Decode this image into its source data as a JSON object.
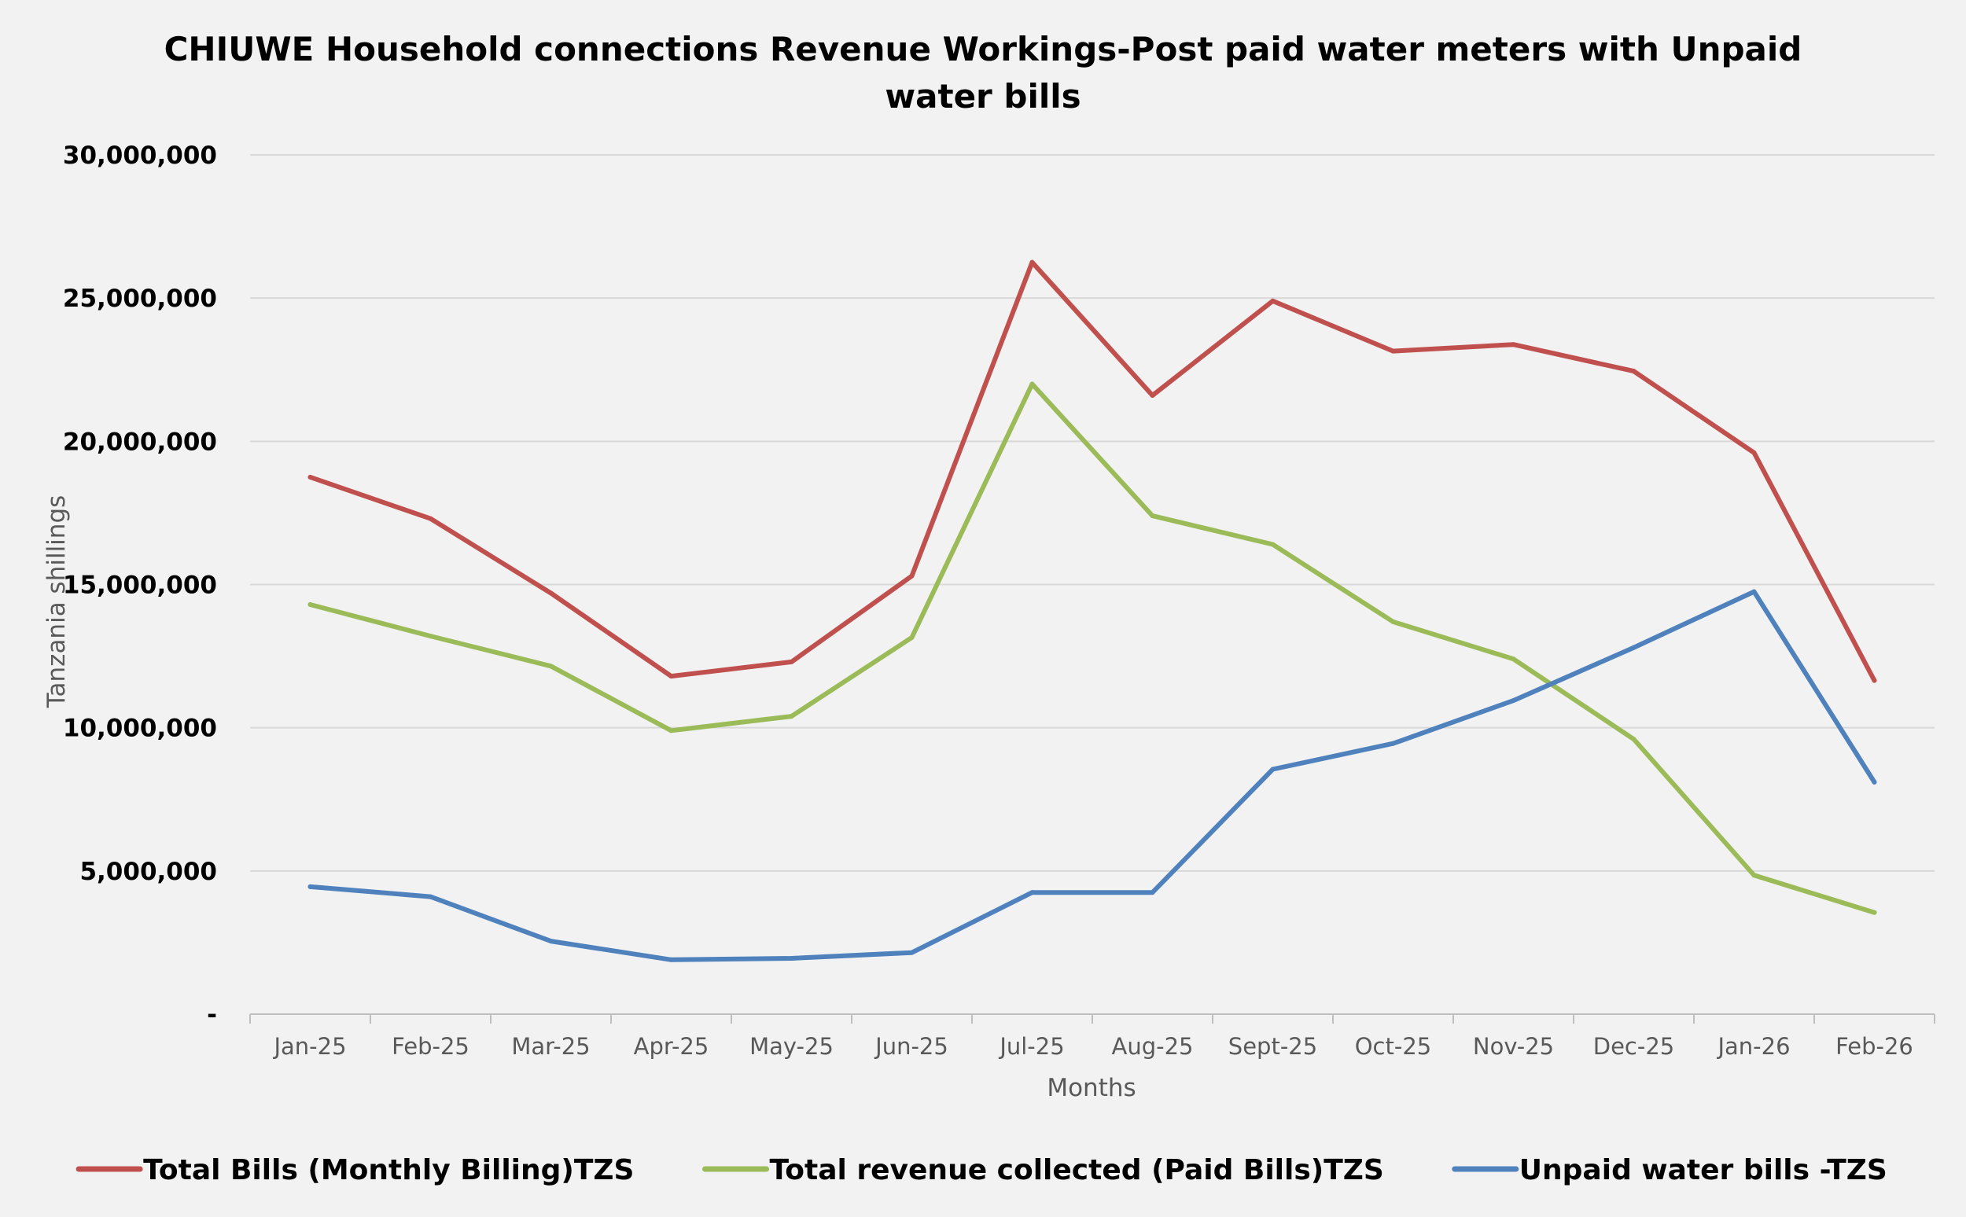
{
  "chart_data": {
    "type": "line",
    "title_lines": [
      "CHIUWE Household connections  Revenue Workings-Post paid water meters   with  Unpaid",
      "water bills"
    ],
    "xlabel": "Months",
    "ylabel": "Tanzania shillings",
    "categories": [
      "Jan-25",
      "Feb-25",
      "Mar-25",
      "Apr-25",
      "May-25",
      "Jun-25",
      "Jul-25",
      "Aug-25",
      "Sept-25",
      "Oct-25",
      "Nov-25",
      "Dec-25",
      "Jan-26",
      "Feb-26"
    ],
    "ylim": [
      0,
      30000000
    ],
    "yticks": [
      0,
      5000000,
      10000000,
      15000000,
      20000000,
      25000000,
      30000000
    ],
    "ytick_labels": [
      "-",
      "5,000,000",
      "10,000,000",
      "15,000,000",
      "20,000,000",
      "25,000,000",
      "30,000,000"
    ],
    "grid": true,
    "legend_position": "bottom",
    "series": [
      {
        "name": "Total Bills (Monthly Billing)TZS",
        "color": "#c0504d",
        "values": [
          18750000,
          17300000,
          14700000,
          11800000,
          12300000,
          15300000,
          26250000,
          21600000,
          24900000,
          23150000,
          23380000,
          22450000,
          19600000,
          11650000
        ]
      },
      {
        "name": "Total revenue collected (Paid Bills)TZS",
        "color": "#9bbb59",
        "values": [
          14300000,
          13200000,
          12150000,
          9900000,
          10400000,
          13150000,
          22000000,
          17400000,
          16400000,
          13700000,
          12400000,
          9600000,
          4850000,
          3550000
        ]
      },
      {
        "name": "Unpaid water bills -TZS",
        "color": "#4f81bd",
        "values": [
          4450000,
          4100000,
          2550000,
          1900000,
          1950000,
          2150000,
          4250000,
          4250000,
          8550000,
          9450000,
          10950000,
          12800000,
          14750000,
          8100000
        ]
      }
    ]
  }
}
